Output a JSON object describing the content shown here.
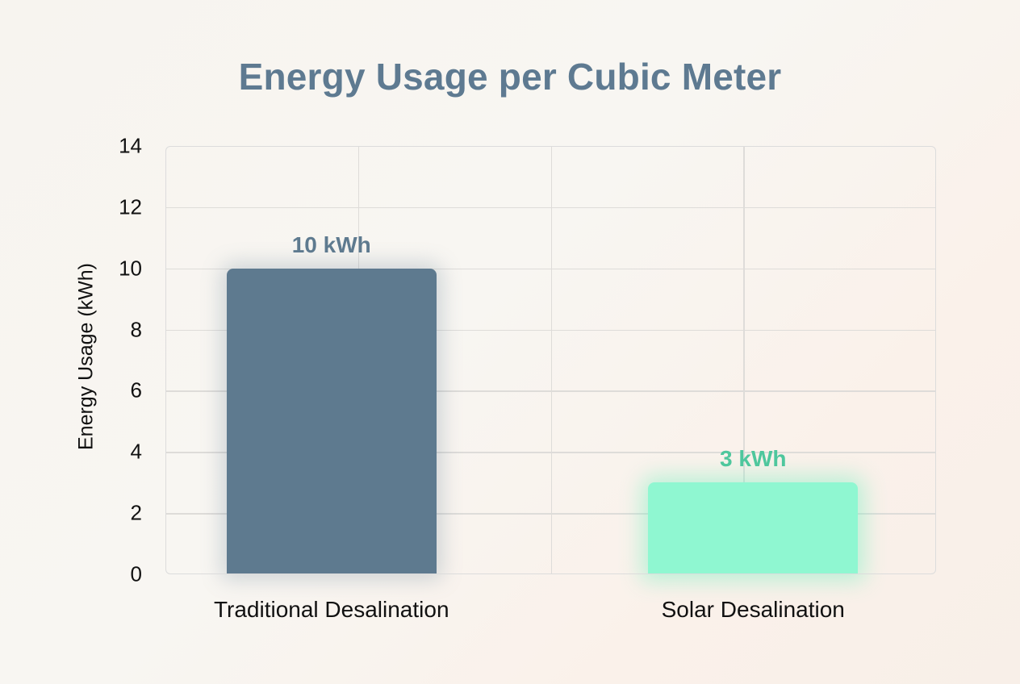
{
  "chart_data": {
    "type": "bar",
    "title": "Energy Usage per Cubic Meter",
    "xlabel": "",
    "ylabel": "Energy Usage (kWh)",
    "categories": [
      "Traditional Desalination",
      "Solar Desalination"
    ],
    "values": [
      10,
      3
    ],
    "data_labels": [
      "10 kWh",
      "3 kWh"
    ],
    "colors": [
      "#5e7a8f",
      "#8ff7d1"
    ],
    "label_colors": [
      "#5e7a8f",
      "#4ec79d"
    ],
    "ylim": [
      0,
      14
    ],
    "yticks": [
      "0",
      "2",
      "4",
      "6",
      "8",
      "10",
      "12",
      "14"
    ],
    "grid": true,
    "legend": null
  }
}
